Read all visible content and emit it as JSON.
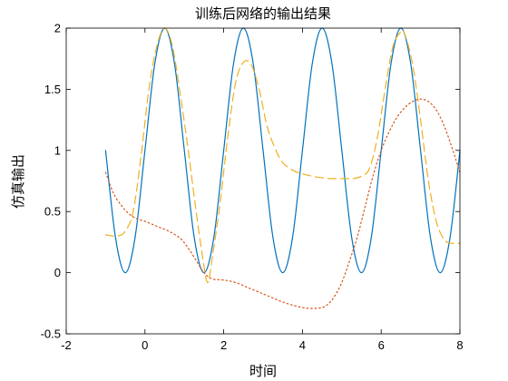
{
  "chart_data": {
    "type": "line",
    "title": "训练后网络的输出结果",
    "xlabel": "时间",
    "ylabel": "仿真输出",
    "xlim": [
      -2,
      8
    ],
    "ylim": [
      -0.5,
      2
    ],
    "xticks": [
      -2,
      0,
      2,
      4,
      6,
      8
    ],
    "yticks": [
      -0.5,
      0,
      0.5,
      1,
      1.5,
      2
    ],
    "xtick_labels": [
      "-2",
      "0",
      "2",
      "4",
      "6",
      "8"
    ],
    "ytick_labels": [
      "-0.5",
      "0",
      "0.5",
      "1",
      "1.5",
      "2"
    ],
    "grid": false,
    "legend": "none",
    "series": [
      {
        "color": "#0072BD",
        "style": "solid",
        "x": [
          -1,
          -0.75,
          -0.5,
          -0.25,
          0,
          0.25,
          0.5,
          0.75,
          1,
          1.25,
          1.5,
          1.75,
          2,
          2.25,
          2.5,
          2.75,
          3,
          3.25,
          3.5,
          3.75,
          4,
          4.25,
          4.5,
          4.75,
          5,
          5.25,
          5.5,
          5.75,
          6,
          6.25,
          6.5,
          6.75,
          7,
          7.25,
          7.5,
          7.75,
          8
        ],
        "y": [
          1.0,
          0.29,
          0.0,
          0.29,
          1.0,
          1.71,
          2.0,
          1.71,
          1.0,
          0.29,
          0.0,
          0.29,
          1.0,
          1.71,
          2.0,
          1.71,
          1.0,
          0.29,
          0.0,
          0.29,
          1.0,
          1.71,
          2.0,
          1.71,
          1.0,
          0.29,
          0.0,
          0.29,
          1.0,
          1.71,
          2.0,
          1.71,
          1.0,
          0.29,
          0.0,
          0.29,
          1.0
        ]
      },
      {
        "color": "#EDB120",
        "style": "dashed",
        "x": [
          -1,
          -0.7,
          -0.5,
          -0.3,
          -0.1,
          0.1,
          0.3,
          0.5,
          0.7,
          0.9,
          1.1,
          1.3,
          1.5,
          1.6,
          1.7,
          1.9,
          2.1,
          2.3,
          2.5,
          2.7,
          2.9,
          3.1,
          3.3,
          3.5,
          3.8,
          4.1,
          4.4,
          4.7,
          5.0,
          5.3,
          5.5,
          5.7,
          5.9,
          6.1,
          6.3,
          6.5,
          6.6,
          6.8,
          7.0,
          7.2,
          7.4,
          7.6,
          7.8,
          8.0
        ],
        "y": [
          0.31,
          0.3,
          0.34,
          0.5,
          0.95,
          1.5,
          1.85,
          2.0,
          1.85,
          1.45,
          1.0,
          0.5,
          0.05,
          -0.08,
          0.1,
          0.55,
          1.1,
          1.55,
          1.72,
          1.7,
          1.5,
          1.2,
          1.02,
          0.9,
          0.83,
          0.8,
          0.78,
          0.77,
          0.77,
          0.77,
          0.79,
          0.85,
          1.1,
          1.5,
          1.85,
          1.97,
          1.95,
          1.7,
          1.25,
          0.75,
          0.42,
          0.27,
          0.24,
          0.24
        ]
      },
      {
        "color": "#D95319",
        "style": "dotted",
        "x": [
          -1,
          -0.8,
          -0.6,
          -0.4,
          -0.2,
          0,
          0.3,
          0.6,
          0.9,
          1.1,
          1.3,
          1.5,
          1.7,
          2.0,
          2.3,
          2.6,
          2.9,
          3.2,
          3.5,
          3.8,
          4.1,
          4.4,
          4.6,
          4.8,
          5.0,
          5.2,
          5.4,
          5.6,
          5.8,
          6.0,
          6.2,
          6.4,
          6.6,
          6.8,
          7.0,
          7.2,
          7.4,
          7.6,
          7.8,
          8.0
        ],
        "y": [
          0.82,
          0.65,
          0.55,
          0.48,
          0.44,
          0.42,
          0.38,
          0.34,
          0.28,
          0.2,
          0.1,
          0.0,
          -0.05,
          -0.06,
          -0.08,
          -0.12,
          -0.16,
          -0.2,
          -0.24,
          -0.27,
          -0.29,
          -0.29,
          -0.27,
          -0.2,
          -0.08,
          0.1,
          0.3,
          0.55,
          0.8,
          1.0,
          1.15,
          1.27,
          1.35,
          1.4,
          1.42,
          1.4,
          1.33,
          1.2,
          1.02,
          0.82
        ]
      }
    ]
  }
}
